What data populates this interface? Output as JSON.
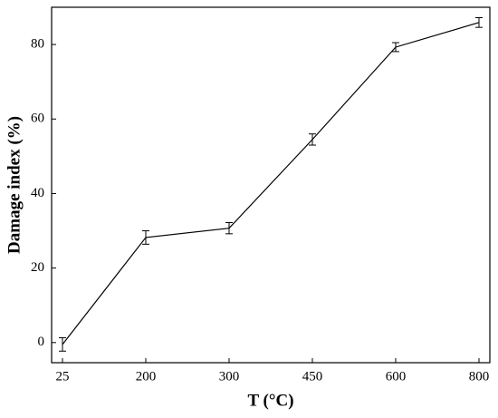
{
  "chart_data": {
    "type": "line",
    "x_label": "T (°C)",
    "y_label": "Damage index (%)",
    "categories": [
      "25",
      "200",
      "300",
      "450",
      "600",
      "800"
    ],
    "series": [
      {
        "color": "#000000",
        "values": [
          -0.5,
          28.2,
          30.7,
          54.5,
          79.3,
          85.9
        ],
        "errors": [
          1.8,
          1.8,
          1.5,
          1.5,
          1.2,
          1.3
        ]
      }
    ],
    "ylim": [
      -5.4,
      90
    ],
    "yticks": [
      0,
      20,
      40,
      60,
      80
    ],
    "grid": false
  }
}
